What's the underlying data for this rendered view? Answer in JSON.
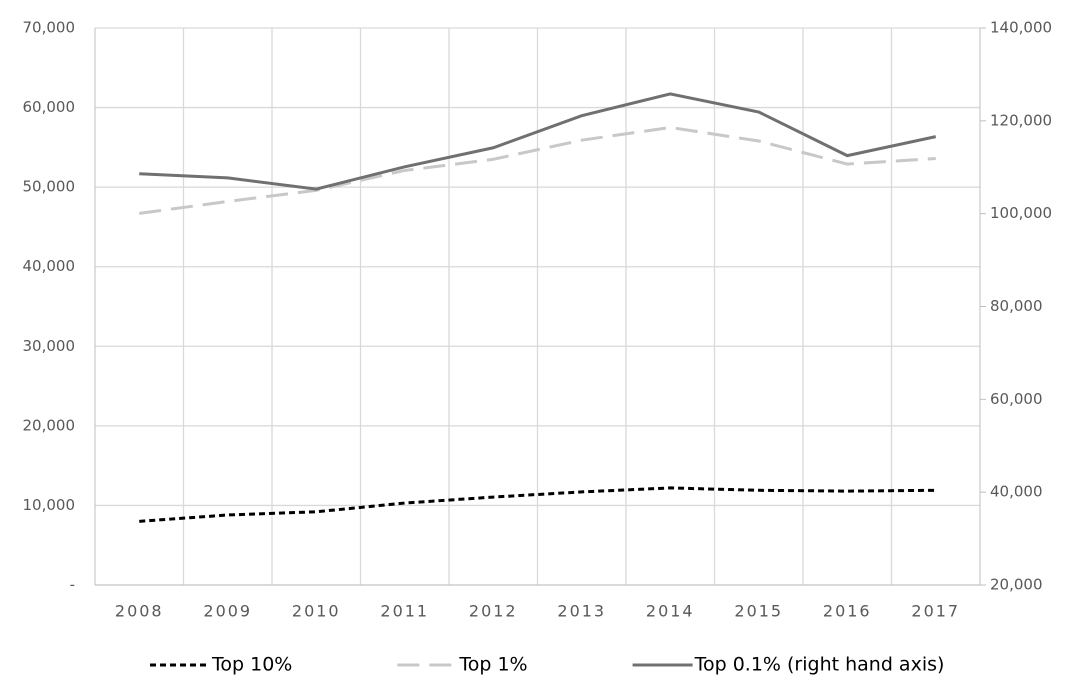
{
  "chart_data": {
    "type": "line",
    "categories": [
      "2008",
      "2009",
      "2010",
      "2011",
      "2012",
      "2013",
      "2014",
      "2015",
      "2016",
      "2017"
    ],
    "series": [
      {
        "name": "Top 10%",
        "color": "#000000",
        "dash": "dotted",
        "values": [
          8000,
          8800,
          9200,
          10300,
          11050,
          11700,
          12200,
          11900,
          11800,
          11900
        ]
      },
      {
        "name": "Top 1%",
        "color": "#c8c8c8",
        "dash": "dashed",
        "values": [
          46700,
          48200,
          49600,
          52100,
          53500,
          55900,
          57500,
          55800,
          52900,
          53600
        ]
      },
      {
        "name": "Top 0.1% (right hand axis)",
        "color": "#707070",
        "dash": "solid",
        "axis": "y2",
        "values": [
          108600,
          107700,
          105300,
          110100,
          114200,
          121100,
          125800,
          121900,
          112500,
          116600
        ]
      }
    ],
    "ylim": [
      0,
      70000
    ],
    "yticks": [
      {
        "value": 0,
        "label": "-"
      },
      {
        "value": 10000,
        "label": "10,000"
      },
      {
        "value": 20000,
        "label": "20,000"
      },
      {
        "value": 30000,
        "label": "30,000"
      },
      {
        "value": 40000,
        "label": "40,000"
      },
      {
        "value": 50000,
        "label": "50,000"
      },
      {
        "value": 60000,
        "label": "60,000"
      },
      {
        "value": 70000,
        "label": "70,000"
      }
    ],
    "y2lim": [
      20000,
      140000
    ],
    "y2ticks": [
      {
        "value": 20000,
        "label": "20,000"
      },
      {
        "value": 40000,
        "label": "40,000"
      },
      {
        "value": 60000,
        "label": "60,000"
      },
      {
        "value": 80000,
        "label": "80,000"
      },
      {
        "value": 100000,
        "label": "100,000"
      },
      {
        "value": 120000,
        "label": "120,000"
      },
      {
        "value": 140000,
        "label": "140,000"
      }
    ],
    "grid": true,
    "legend": "bottom"
  }
}
